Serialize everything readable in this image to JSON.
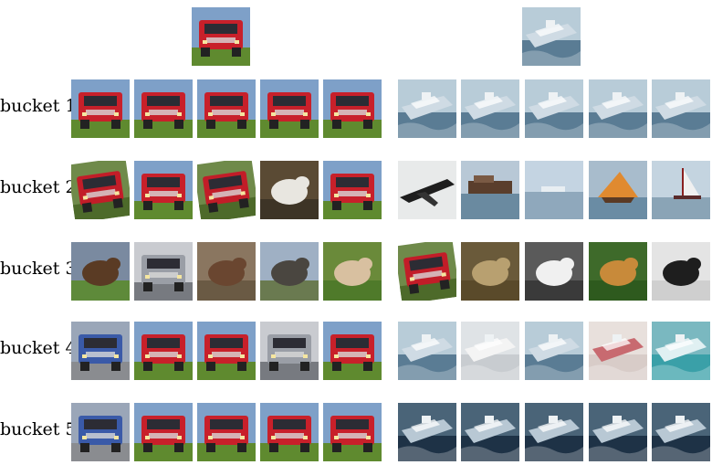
{
  "rows": [
    {
      "label": "bucket 1"
    },
    {
      "label": "bucket 2"
    },
    {
      "label": "bucket 3"
    },
    {
      "label": "bucket 4"
    },
    {
      "label": "bucket 5"
    }
  ],
  "queries": [
    {
      "subject": "red truck"
    },
    {
      "subject": "ship"
    }
  ],
  "grids": {
    "left": [
      [
        "truck-red",
        "truck-red",
        "truck-red",
        "truck-red",
        "truck-red"
      ],
      [
        "truck-red-tilt",
        "truck-red",
        "truck-red-tilt",
        "car-white",
        "truck-red"
      ],
      [
        "horse-brown",
        "truck-grey",
        "animal-brown",
        "car-grey",
        "dog-grass"
      ],
      [
        "truck-blue",
        "truck-red",
        "truck-red",
        "truck-grey",
        "truck-red"
      ],
      [
        "truck-blue",
        "truck-red",
        "truck-red",
        "truck-red",
        "truck-red"
      ]
    ],
    "right": [
      [
        "ship",
        "ship",
        "ship",
        "ship",
        "ship"
      ],
      [
        "plane",
        "boat-brown",
        "ship-distant",
        "boat-orange",
        "sailboat"
      ],
      [
        "truck-red-tilt",
        "frog",
        "bird-white",
        "deer",
        "dog-black"
      ],
      [
        "ship",
        "ship-white",
        "ship",
        "ship-red",
        "ship-teal"
      ],
      [
        "ship-dark",
        "ship-dark",
        "ship-dark",
        "ship-dark",
        "ship-dark"
      ]
    ]
  }
}
